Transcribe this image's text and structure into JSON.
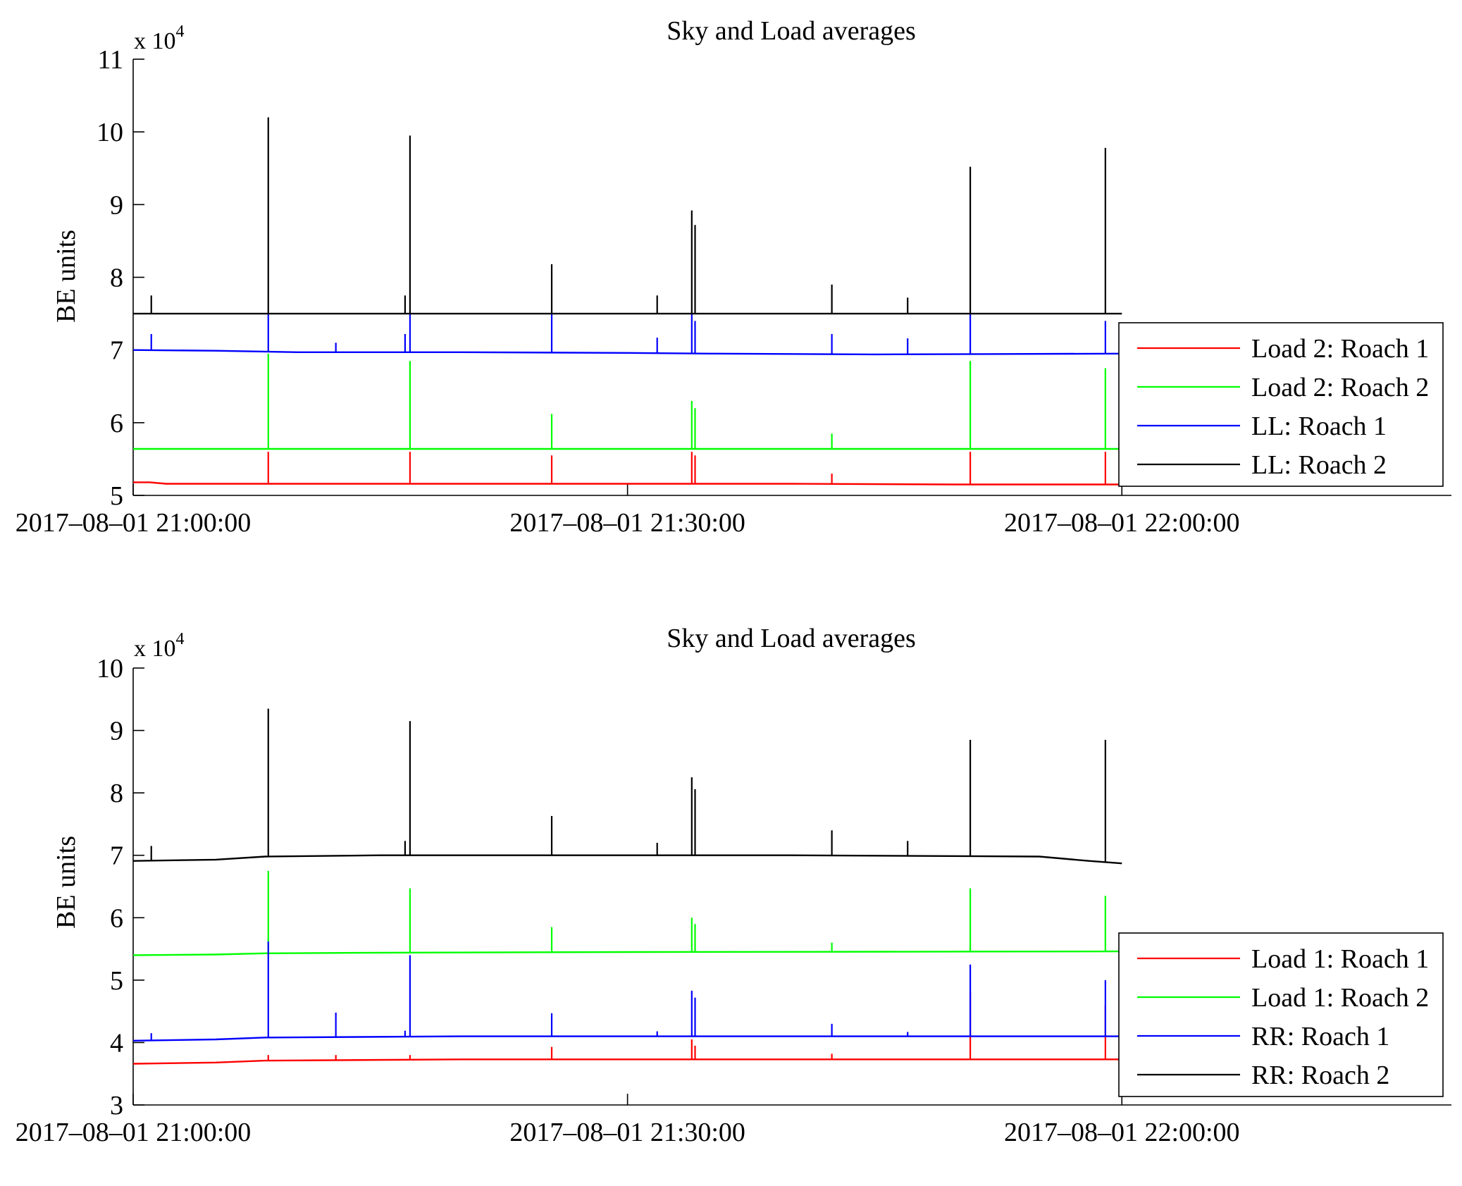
{
  "chart_data": [
    {
      "type": "line",
      "title": "Sky and Load averages",
      "ylabel": "BE units",
      "xlabel": "",
      "exponent_label": {
        "base": "x 10",
        "exp": "4"
      },
      "ylim": [
        50000,
        110000
      ],
      "yticks": [
        50000,
        60000,
        70000,
        80000,
        90000,
        100000,
        110000
      ],
      "ytick_labels": [
        "5",
        "6",
        "7",
        "8",
        "9",
        "10",
        "11"
      ],
      "xlim": [
        0,
        80
      ],
      "xticks": [
        0,
        30,
        60
      ],
      "xtick_labels": [
        "2017–08–01  21:00:00",
        "2017–08–01  21:30:00",
        "2017–08–01  22:00:00"
      ],
      "legend_position": "bottom-right",
      "series": [
        {
          "name": "Load 2: Roach 1",
          "color": "#ff0000",
          "base": [
            [
              0,
              51800
            ],
            [
              1,
              51800
            ],
            [
              2,
              51600
            ],
            [
              25,
              51600
            ],
            [
              40,
              51600
            ],
            [
              50,
              51500
            ],
            [
              60,
              51500
            ]
          ],
          "spikes": [
            [
              8.2,
              56000
            ],
            [
              16.8,
              56000
            ],
            [
              25.4,
              55500
            ],
            [
              33.9,
              56000
            ],
            [
              34.1,
              55500
            ],
            [
              42.4,
              53000
            ],
            [
              50.8,
              56000
            ],
            [
              59.0,
              56000
            ]
          ]
        },
        {
          "name": "Load 2: Roach 2",
          "color": "#00ff00",
          "base": [
            [
              0,
              56400
            ],
            [
              60,
              56400
            ]
          ],
          "spikes": [
            [
              8.2,
              69500
            ],
            [
              16.8,
              68500
            ],
            [
              25.4,
              61200
            ],
            [
              33.9,
              63000
            ],
            [
              34.1,
              62000
            ],
            [
              42.4,
              58500
            ],
            [
              50.8,
              68500
            ],
            [
              59.0,
              67500
            ]
          ]
        },
        {
          "name": "LL: Roach 1",
          "color": "#0000ff",
          "base": [
            [
              0,
              70000
            ],
            [
              5,
              69900
            ],
            [
              10,
              69700
            ],
            [
              20,
              69700
            ],
            [
              30,
              69600
            ],
            [
              35,
              69500
            ],
            [
              45,
              69400
            ],
            [
              60,
              69500
            ]
          ],
          "spikes": [
            [
              1.1,
              72200
            ],
            [
              8.2,
              75000
            ],
            [
              12.3,
              71000
            ],
            [
              16.5,
              72200
            ],
            [
              16.8,
              75000
            ],
            [
              25.4,
              75000
            ],
            [
              31.8,
              71700
            ],
            [
              33.9,
              75000
            ],
            [
              34.1,
              74000
            ],
            [
              42.4,
              72200
            ],
            [
              47.0,
              71600
            ],
            [
              50.8,
              75000
            ],
            [
              59.0,
              74000
            ]
          ]
        },
        {
          "name": "LL: Roach 2",
          "color": "#000000",
          "base": [
            [
              0,
              75000
            ],
            [
              60,
              75000
            ]
          ],
          "spikes": [
            [
              1.1,
              77500
            ],
            [
              8.2,
              102000
            ],
            [
              16.5,
              77500
            ],
            [
              16.8,
              99500
            ],
            [
              25.4,
              81800
            ],
            [
              31.8,
              77500
            ],
            [
              33.9,
              89200
            ],
            [
              34.1,
              87200
            ],
            [
              42.4,
              79000
            ],
            [
              47.0,
              77200
            ],
            [
              50.8,
              95200
            ],
            [
              59.0,
              97800
            ]
          ]
        }
      ]
    },
    {
      "type": "line",
      "title": "Sky and Load averages",
      "ylabel": "BE units",
      "xlabel": "",
      "exponent_label": {
        "base": "x 10",
        "exp": "4"
      },
      "ylim": [
        30000,
        100000
      ],
      "yticks": [
        30000,
        40000,
        50000,
        60000,
        70000,
        80000,
        90000,
        100000
      ],
      "ytick_labels": [
        "3",
        "4",
        "5",
        "6",
        "7",
        "8",
        "9",
        "10"
      ],
      "xlim": [
        0,
        80
      ],
      "xticks": [
        0,
        30,
        60
      ],
      "xtick_labels": [
        "2017–08–01  21:00:00",
        "2017–08–01  21:30:00",
        "2017–08–01  22:00:00"
      ],
      "legend_position": "bottom-right",
      "series": [
        {
          "name": "Load 1: Roach 1",
          "color": "#ff0000",
          "base": [
            [
              0,
              36600
            ],
            [
              5,
              36800
            ],
            [
              8,
              37100
            ],
            [
              20,
              37300
            ],
            [
              40,
              37300
            ],
            [
              60,
              37300
            ]
          ],
          "spikes": [
            [
              8.2,
              38000
            ],
            [
              12.3,
              38000
            ],
            [
              16.8,
              38000
            ],
            [
              25.4,
              39300
            ],
            [
              33.9,
              40500
            ],
            [
              34.1,
              39500
            ],
            [
              42.4,
              38200
            ],
            [
              50.8,
              48000
            ],
            [
              59.0,
              46000
            ]
          ]
        },
        {
          "name": "Load 1: Roach 2",
          "color": "#00ff00",
          "base": [
            [
              0,
              54000
            ],
            [
              5,
              54100
            ],
            [
              8,
              54300
            ],
            [
              15,
              54400
            ],
            [
              30,
              54500
            ],
            [
              60,
              54600
            ]
          ],
          "spikes": [
            [
              8.2,
              67500
            ],
            [
              16.8,
              64700
            ],
            [
              25.4,
              58500
            ],
            [
              33.9,
              60000
            ],
            [
              34.1,
              59000
            ],
            [
              42.4,
              56000
            ],
            [
              50.8,
              64700
            ],
            [
              59.0,
              63500
            ]
          ]
        },
        {
          "name": "RR: Roach 1",
          "color": "#0000ff",
          "base": [
            [
              0,
              40300
            ],
            [
              5,
              40500
            ],
            [
              8,
              40800
            ],
            [
              20,
              41000
            ],
            [
              60,
              41000
            ]
          ],
          "spikes": [
            [
              1.1,
              41500
            ],
            [
              8.2,
              56200
            ],
            [
              12.3,
              44800
            ],
            [
              16.5,
              41900
            ],
            [
              16.8,
              54000
            ],
            [
              25.4,
              44700
            ],
            [
              31.8,
              41800
            ],
            [
              33.9,
              48300
            ],
            [
              34.1,
              47200
            ],
            [
              42.4,
              43000
            ],
            [
              47.0,
              41700
            ],
            [
              50.8,
              52500
            ],
            [
              59.0,
              50000
            ]
          ]
        },
        {
          "name": "RR: Roach 2",
          "color": "#000000",
          "base": [
            [
              0,
              69100
            ],
            [
              5,
              69300
            ],
            [
              8,
              69800
            ],
            [
              15,
              70000
            ],
            [
              40,
              70000
            ],
            [
              55,
              69800
            ],
            [
              58,
              69100
            ],
            [
              60,
              68700
            ]
          ],
          "spikes": [
            [
              1.1,
              71500
            ],
            [
              8.2,
              93500
            ],
            [
              16.5,
              72300
            ],
            [
              16.8,
              91500
            ],
            [
              25.4,
              76300
            ],
            [
              31.8,
              72000
            ],
            [
              33.9,
              82500
            ],
            [
              34.1,
              80600
            ],
            [
              42.4,
              74000
            ],
            [
              47.0,
              72300
            ],
            [
              50.8,
              88500
            ],
            [
              59.0,
              88500
            ]
          ]
        }
      ]
    }
  ]
}
